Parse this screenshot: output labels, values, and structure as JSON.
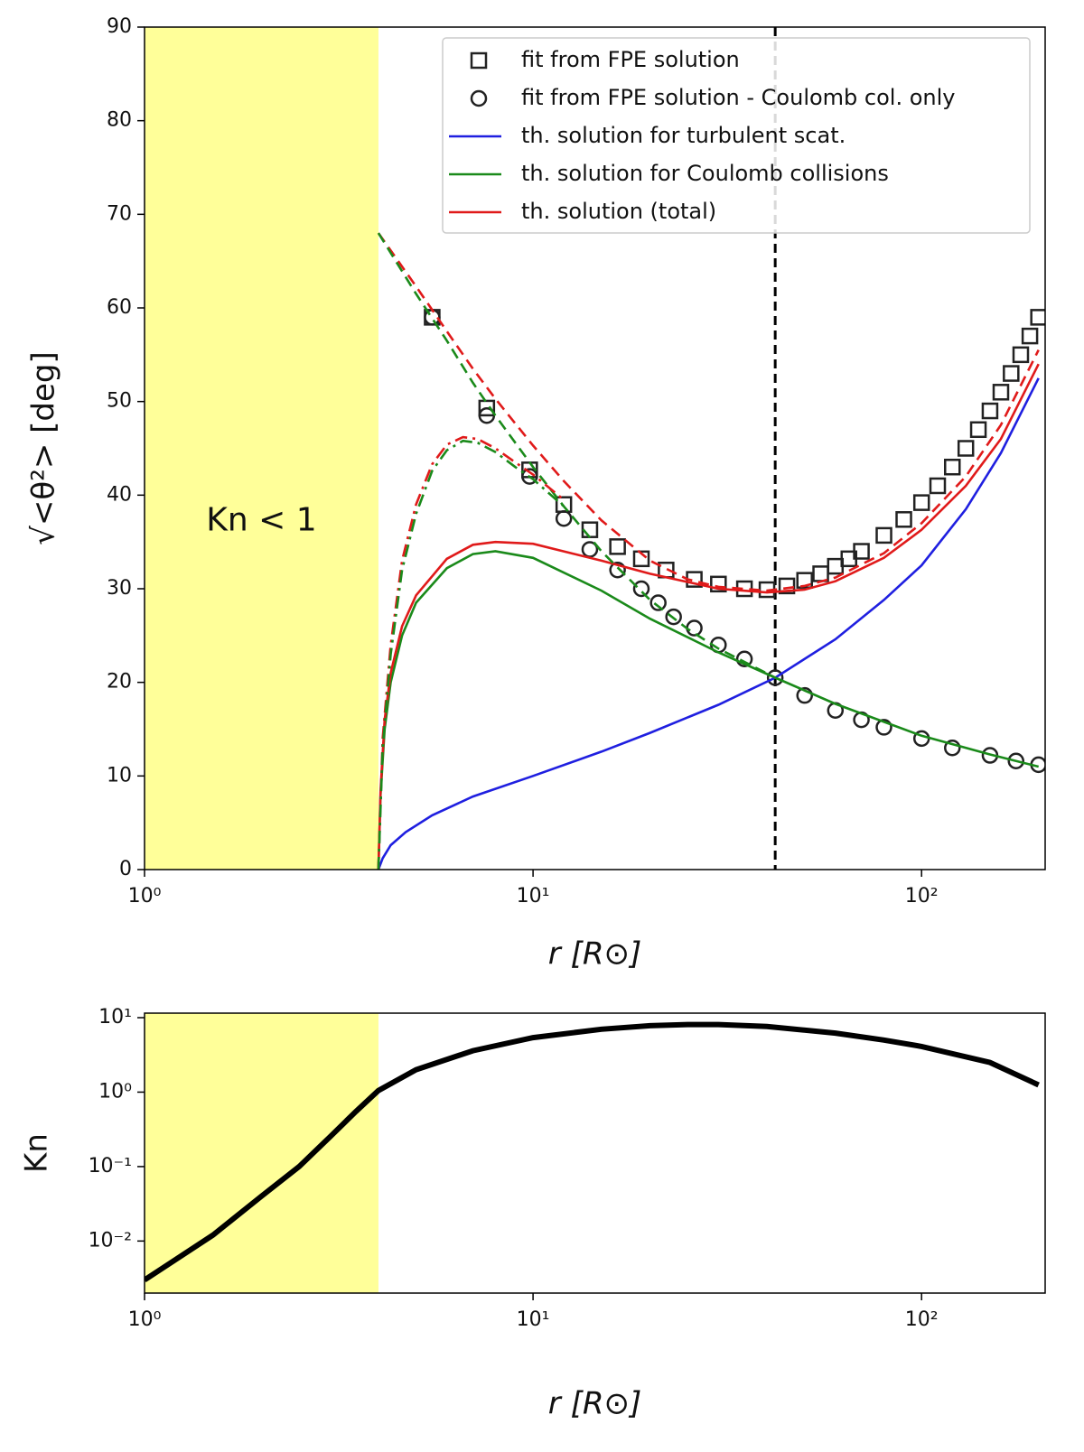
{
  "chart_data": [
    {
      "type": "line",
      "xlog": true,
      "xlabel": "r [R⊙]",
      "ylabel": "√<θ²>  [deg]",
      "xlim": [
        1,
        208
      ],
      "ylim": [
        0,
        90
      ],
      "xticks": [
        {
          "value": 1,
          "label": "10⁰"
        },
        {
          "value": 10,
          "label": "10¹"
        },
        {
          "value": 100,
          "label": "10²"
        }
      ],
      "yticks": [
        0,
        10,
        20,
        30,
        40,
        50,
        60,
        70,
        80,
        90
      ],
      "shade": [
        1,
        4
      ],
      "shade_color": "#ffff99",
      "shade_label": "Kn < 1",
      "vline": 42,
      "series": [
        {
          "name": "fit from FPE solution",
          "style": "square",
          "color": "#222222",
          "x": [
            5.5,
            7.6,
            9.8,
            12,
            14,
            16.5,
            19,
            22,
            26,
            30,
            35,
            40,
            45,
            50,
            55,
            60,
            65,
            70,
            80,
            90,
            100,
            110,
            120,
            130,
            140,
            150,
            160,
            170,
            180,
            190,
            200
          ],
          "values": [
            59,
            49.3,
            42.7,
            39,
            36.3,
            34.5,
            33.2,
            32,
            31,
            30.5,
            30,
            29.9,
            30.3,
            30.9,
            31.6,
            32.4,
            33.2,
            34,
            35.7,
            37.4,
            39.2,
            41,
            43,
            45,
            47,
            49,
            51,
            53,
            55,
            57,
            59
          ]
        },
        {
          "name": "fit from FPE solution - Coulomb col. only",
          "style": "circle",
          "color": "#222222",
          "x": [
            5.5,
            7.6,
            9.8,
            12,
            14,
            16.5,
            19,
            21,
            23,
            26,
            30,
            35,
            42,
            50,
            60,
            70,
            80,
            100,
            120,
            150,
            175,
            200
          ],
          "values": [
            59,
            48.5,
            42,
            37.5,
            34.2,
            32,
            30,
            28.5,
            27,
            25.8,
            24,
            22.5,
            20.5,
            18.6,
            17,
            16,
            15.2,
            14,
            13,
            12.2,
            11.6,
            11.2
          ]
        },
        {
          "name": "th. solution for turbulent scat.",
          "style": "line",
          "color": "#1f1fe0",
          "x": [
            4,
            4.1,
            4.3,
            4.7,
            5.5,
            7,
            10,
            15,
            20,
            30,
            42,
            60,
            80,
            100,
            130,
            160,
            200
          ],
          "values": [
            0,
            1.2,
            2.6,
            4,
            5.8,
            7.8,
            10,
            12.6,
            14.6,
            17.6,
            20.5,
            24.6,
            28.8,
            32.5,
            38.5,
            44.5,
            52.5
          ]
        },
        {
          "name": "th. solution for Coulomb collisions",
          "style": "line",
          "color": "#1a8a1a",
          "x": [
            4,
            4.05,
            4.15,
            4.3,
            4.6,
            5,
            6,
            7,
            8,
            10,
            15,
            20,
            30,
            42,
            60,
            100,
            150,
            200
          ],
          "values": [
            0,
            8,
            15,
            20,
            25,
            28.5,
            32.2,
            33.7,
            34,
            33.3,
            29.8,
            26.8,
            23.2,
            20.5,
            17.7,
            14.3,
            12.3,
            11
          ]
        },
        {
          "name": "th. solution (total)",
          "style": "line",
          "color": "#e01a1a",
          "x": [
            4,
            4.05,
            4.15,
            4.3,
            4.6,
            5,
            6,
            7,
            8,
            10,
            15,
            20,
            30,
            40,
            50,
            60,
            80,
            100,
            130,
            160,
            200
          ],
          "values": [
            0,
            8.5,
            16,
            21,
            26,
            29.3,
            33.2,
            34.7,
            35,
            34.8,
            33,
            31.6,
            30,
            29.6,
            29.9,
            30.8,
            33.3,
            36.3,
            41,
            46,
            54
          ]
        },
        {
          "style": "dashed",
          "color": "#e01a1a",
          "x": [
            4,
            5,
            6,
            7,
            8,
            10,
            12,
            15,
            20,
            25,
            30,
            40,
            50,
            60,
            80,
            100,
            130,
            160,
            200
          ],
          "values": [
            68,
            62.3,
            57.5,
            53.5,
            50.3,
            45.3,
            41.5,
            37.3,
            33,
            31,
            30.2,
            29.8,
            30.3,
            31.2,
            33.8,
            37,
            42,
            47.5,
            55.5
          ]
        },
        {
          "style": "dashed",
          "color": "#1a8a1a",
          "x": [
            4,
            5,
            6,
            7,
            8,
            10,
            12,
            15,
            20,
            25,
            30,
            42
          ],
          "values": [
            68,
            61.5,
            56.5,
            52,
            48.5,
            43,
            38.8,
            34,
            28.8,
            25.7,
            23.6,
            20.5
          ]
        },
        {
          "style": "dashdot",
          "color": "#e01a1a",
          "x": [
            4,
            4.1,
            4.3,
            4.6,
            5,
            5.5,
            6,
            6.6,
            7.2,
            8,
            9,
            10,
            12
          ],
          "values": [
            0,
            14,
            24,
            33,
            39,
            43.3,
            45.4,
            46.2,
            46,
            45,
            43.5,
            42.2,
            39.5
          ]
        },
        {
          "style": "dashdot",
          "color": "#1a8a1a",
          "x": [
            4,
            4.1,
            4.3,
            4.6,
            5,
            5.5,
            6,
            6.6,
            7.2,
            8,
            9,
            10,
            12
          ],
          "values": [
            0,
            13,
            23,
            32,
            38,
            42.6,
            44.8,
            45.8,
            45.6,
            44.6,
            43,
            41.7,
            38.8
          ]
        }
      ]
    },
    {
      "type": "line",
      "xlog": true,
      "ylog": true,
      "xlabel": "r [R⊙]",
      "ylabel": "Kn",
      "xlim": [
        1,
        208
      ],
      "ylim": [
        0.002,
        11.5
      ],
      "xticks": [
        {
          "value": 1,
          "label": "10⁰"
        },
        {
          "value": 10,
          "label": "10¹"
        },
        {
          "value": 100,
          "label": "10²"
        }
      ],
      "yticks": [
        {
          "value": 0.01,
          "label": "10⁻²"
        },
        {
          "value": 0.1,
          "label": "10⁻¹"
        },
        {
          "value": 1,
          "label": "10⁰"
        },
        {
          "value": 10,
          "label": "10¹"
        }
      ],
      "shade": [
        1,
        4
      ],
      "shade_color": "#ffff99",
      "series": [
        {
          "style": "line",
          "color": "#000000",
          "x": [
            1,
            1.5,
            2,
            2.5,
            3,
            3.5,
            4,
            5,
            7,
            10,
            15,
            20,
            25,
            30,
            40,
            60,
            80,
            100,
            150,
            200
          ],
          "values": [
            0.003,
            0.012,
            0.04,
            0.1,
            0.25,
            0.55,
            1.05,
            2,
            3.6,
            5.4,
            7,
            7.8,
            8.1,
            8.1,
            7.6,
            6.2,
            5,
            4.1,
            2.5,
            1.25
          ]
        }
      ]
    }
  ]
}
